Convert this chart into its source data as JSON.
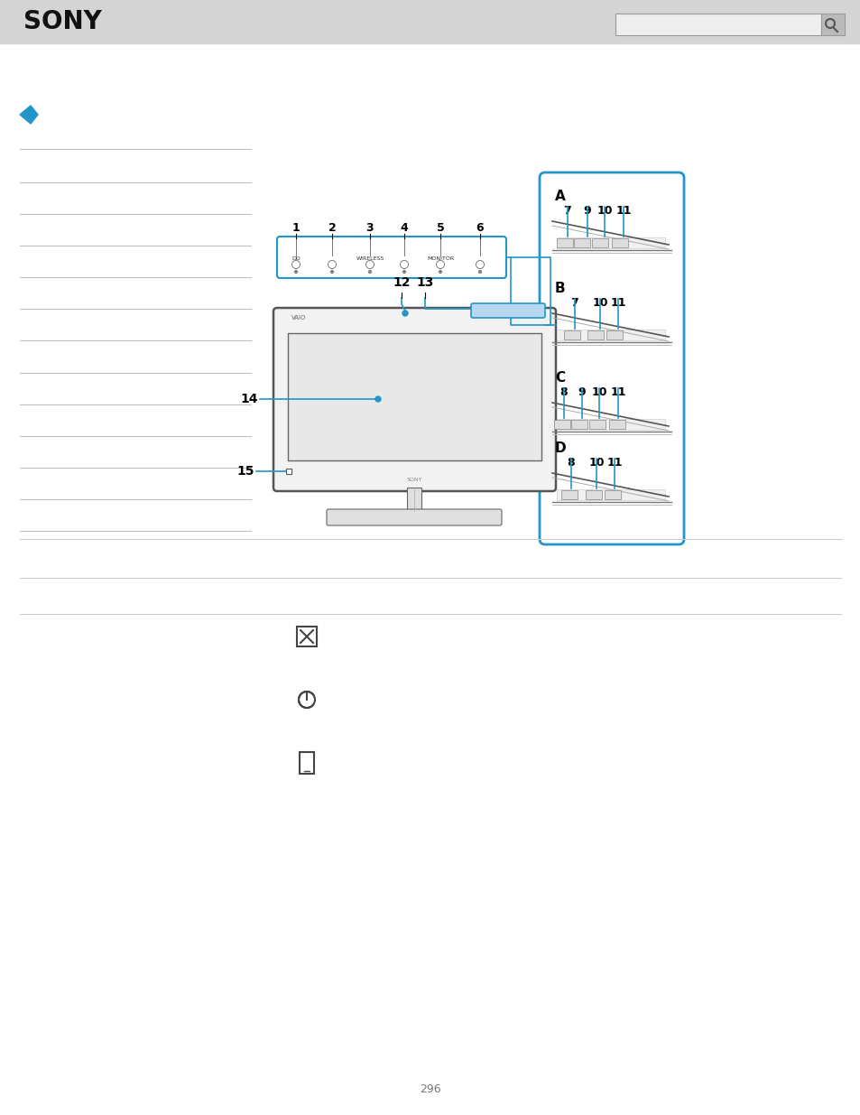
{
  "bg_color": "#ffffff",
  "header_bg": "#d4d4d4",
  "header_text": "SONY",
  "page_number": "296",
  "blue_color": "#2196C8",
  "line_color": "#cccccc",
  "dark_color": "#333333",
  "monitor_color": "#555555",
  "icon_color": "#444444",
  "panel_labels_A": "7 910 11",
  "panel_labels_B": "7 10 11",
  "panel_labels_C": "8 910 11",
  "panel_labels_D": "8 10 11",
  "btn_labels": [
    "DD",
    "",
    "WIRELESS",
    "",
    "MONITOR",
    ""
  ],
  "btn_numbers": [
    "1",
    "2",
    "3",
    "4",
    "5",
    "6"
  ]
}
